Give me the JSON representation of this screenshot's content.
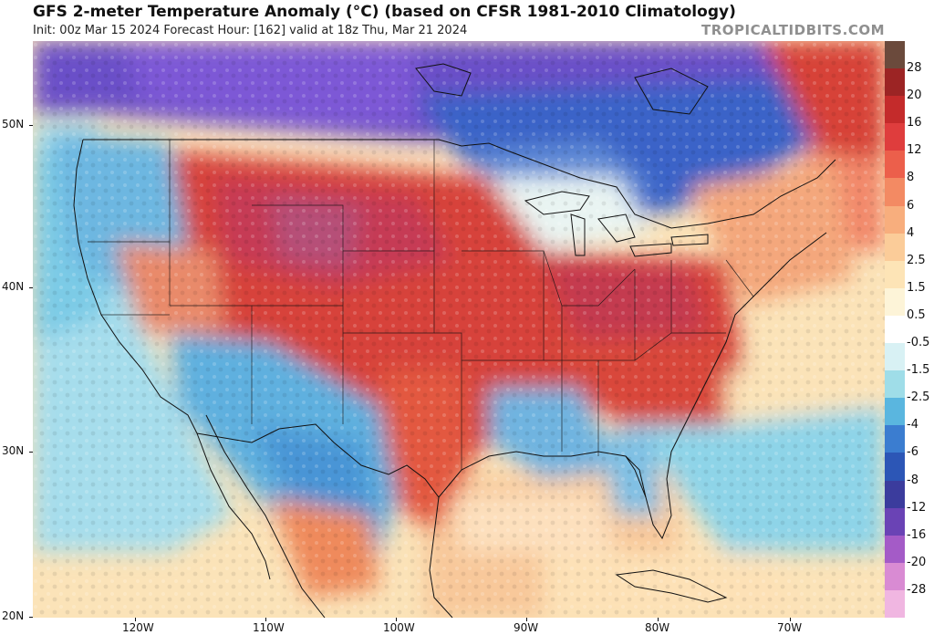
{
  "header": {
    "title": "GFS 2-meter Temperature Anomaly (°C) (based on CFSR 1981-2010 Climatology)",
    "subtitle": "Init: 00z Mar 15 2024   Forecast Hour: [162]   valid at 18z Thu, Mar 21 2024",
    "source": "TROPICALTIDBITS.COM"
  },
  "axes": {
    "latitude_labels": [
      "50N",
      "40N",
      "30N",
      "20N"
    ],
    "longitude_labels": [
      "120W",
      "110W",
      "100W",
      "90W",
      "80W",
      "70W"
    ]
  },
  "colorbar": {
    "labels": [
      "28",
      "20",
      "16",
      "12",
      "8",
      "6",
      "4",
      "2.5",
      "1.5",
      "0.5",
      "-0.5",
      "-1.5",
      "-2.5",
      "-4",
      "-6",
      "-8",
      "-12",
      "-16",
      "-20",
      "-28"
    ],
    "colors": [
      "#6b4a3c",
      "#9c2424",
      "#c42b2b",
      "#df3d3d",
      "#ec5f4b",
      "#f38a63",
      "#f8ae7d",
      "#fbcc99",
      "#fde4b6",
      "#fdf4d8",
      "#ffffff",
      "#d8f1f4",
      "#9fdde8",
      "#5ab6df",
      "#3b7dd0",
      "#2c56b6",
      "#3b3c9d",
      "#6a43b5",
      "#a45bc7",
      "#d98bd3",
      "#f0b6e1"
    ]
  },
  "map": {
    "palette": {
      "ocean_warm": "#fbe3b8",
      "ocean_cool": "#8ed4e8",
      "canada_cold": "#6a4fc8",
      "northeast_cold": "#3a64c8",
      "plains_warm": "#d7433a",
      "hot_core": "#c63a54",
      "west_cool": "#5fb0df",
      "border": "#111111"
    }
  }
}
